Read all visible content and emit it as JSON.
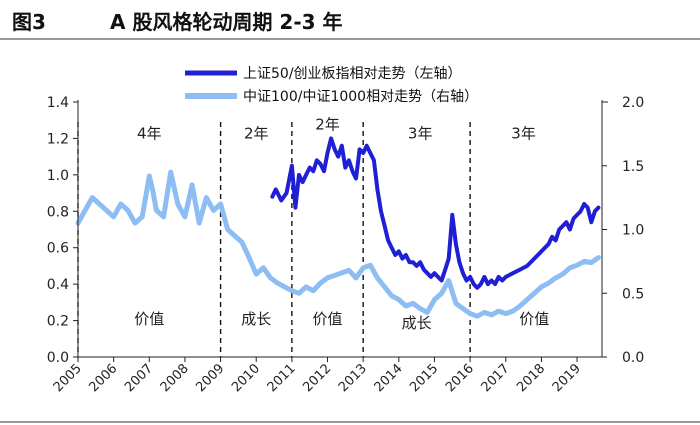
{
  "figure": {
    "number": "图3",
    "title": "A 股风格轮动周期 2-3 年"
  },
  "colors": {
    "series_left": "#1f1fd6",
    "series_right": "#8dbdf2",
    "axis": "#222222"
  },
  "chart_data": {
    "type": "line",
    "title": "A 股风格轮动周期 2-3 年",
    "x_ticks": [
      "2005",
      "2006",
      "2007",
      "2008",
      "2009",
      "2010",
      "2011",
      "2012",
      "2013",
      "2014",
      "2015",
      "2016",
      "2017",
      "2018",
      "2019"
    ],
    "x_range": [
      2005.0,
      2019.7
    ],
    "y_left": {
      "range": [
        0,
        1.4
      ],
      "ticks": [
        "0.0",
        "0.2",
        "0.4",
        "0.6",
        "0.8",
        "1.0",
        "1.2",
        "1.4"
      ]
    },
    "y_right": {
      "range": [
        0,
        2.0
      ],
      "ticks": [
        "0.0",
        "0.5",
        "1.0",
        "1.5",
        "2.0"
      ]
    },
    "legend": [
      "上证50/创业板指相对走势（左轴）",
      "中证100/中证1000相对走势（右轴）"
    ],
    "series": [
      {
        "name": "上证50/创业板指相对走势（左轴）",
        "axis": "left",
        "x": [
          2010.45,
          2010.55,
          2010.7,
          2010.85,
          2011.0,
          2011.1,
          2011.2,
          2011.3,
          2011.4,
          2011.5,
          2011.6,
          2011.7,
          2011.8,
          2011.9,
          2012.0,
          2012.1,
          2012.2,
          2012.3,
          2012.4,
          2012.5,
          2012.6,
          2012.7,
          2012.8,
          2012.9,
          2013.0,
          2013.1,
          2013.2,
          2013.3,
          2013.4,
          2013.5,
          2013.6,
          2013.7,
          2013.8,
          2013.9,
          2014.0,
          2014.1,
          2014.2,
          2014.3,
          2014.4,
          2014.5,
          2014.6,
          2014.7,
          2014.8,
          2014.9,
          2015.0,
          2015.1,
          2015.2,
          2015.3,
          2015.4,
          2015.5,
          2015.6,
          2015.7,
          2015.8,
          2015.9,
          2016.0,
          2016.1,
          2016.2,
          2016.3,
          2016.4,
          2016.5,
          2016.6,
          2016.7,
          2016.8,
          2016.9,
          2017.0,
          2017.2,
          2017.4,
          2017.6,
          2017.8,
          2018.0,
          2018.1,
          2018.2,
          2018.3,
          2018.4,
          2018.5,
          2018.6,
          2018.7,
          2018.8,
          2018.9,
          2019.0,
          2019.1,
          2019.2,
          2019.3,
          2019.4,
          2019.5,
          2019.6
        ],
        "values": [
          0.88,
          0.92,
          0.86,
          0.9,
          1.05,
          0.82,
          1.0,
          0.96,
          1.0,
          1.04,
          1.02,
          1.08,
          1.06,
          1.02,
          1.12,
          1.2,
          1.14,
          1.1,
          1.16,
          1.04,
          1.08,
          1.02,
          0.98,
          1.14,
          1.12,
          1.16,
          1.12,
          1.08,
          0.92,
          0.8,
          0.72,
          0.64,
          0.6,
          0.56,
          0.58,
          0.54,
          0.56,
          0.52,
          0.52,
          0.5,
          0.52,
          0.48,
          0.46,
          0.44,
          0.46,
          0.44,
          0.42,
          0.48,
          0.54,
          0.78,
          0.62,
          0.52,
          0.46,
          0.42,
          0.44,
          0.4,
          0.38,
          0.4,
          0.44,
          0.4,
          0.42,
          0.4,
          0.44,
          0.42,
          0.44,
          0.46,
          0.48,
          0.5,
          0.54,
          0.58,
          0.6,
          0.62,
          0.66,
          0.64,
          0.7,
          0.72,
          0.74,
          0.7,
          0.76,
          0.78,
          0.8,
          0.84,
          0.82,
          0.74,
          0.8,
          0.82
        ]
      },
      {
        "name": "中证100/中证1000相对走势（右轴）",
        "axis": "right",
        "x": [
          2005.0,
          2005.2,
          2005.4,
          2005.6,
          2005.8,
          2006.0,
          2006.2,
          2006.4,
          2006.6,
          2006.8,
          2007.0,
          2007.1,
          2007.2,
          2007.4,
          2007.6,
          2007.8,
          2008.0,
          2008.2,
          2008.4,
          2008.6,
          2008.8,
          2009.0,
          2009.2,
          2009.4,
          2009.6,
          2009.8,
          2010.0,
          2010.2,
          2010.4,
          2010.6,
          2010.8,
          2011.0,
          2011.2,
          2011.4,
          2011.6,
          2011.8,
          2012.0,
          2012.2,
          2012.4,
          2012.6,
          2012.8,
          2013.0,
          2013.2,
          2013.4,
          2013.6,
          2013.8,
          2014.0,
          2014.2,
          2014.4,
          2014.6,
          2014.8,
          2015.0,
          2015.2,
          2015.4,
          2015.6,
          2015.8,
          2016.0,
          2016.2,
          2016.4,
          2016.6,
          2016.8,
          2017.0,
          2017.2,
          2017.4,
          2017.6,
          2017.8,
          2018.0,
          2018.2,
          2018.4,
          2018.6,
          2018.8,
          2019.0,
          2019.2,
          2019.4,
          2019.6
        ],
        "values": [
          1.05,
          1.15,
          1.25,
          1.2,
          1.15,
          1.1,
          1.2,
          1.15,
          1.05,
          1.1,
          1.42,
          1.3,
          1.15,
          1.1,
          1.45,
          1.2,
          1.1,
          1.35,
          1.05,
          1.25,
          1.15,
          1.2,
          1.0,
          0.95,
          0.9,
          0.78,
          0.65,
          0.7,
          0.62,
          0.58,
          0.55,
          0.52,
          0.5,
          0.55,
          0.52,
          0.58,
          0.62,
          0.64,
          0.66,
          0.68,
          0.62,
          0.7,
          0.72,
          0.62,
          0.55,
          0.48,
          0.45,
          0.4,
          0.42,
          0.38,
          0.35,
          0.45,
          0.5,
          0.6,
          0.42,
          0.38,
          0.34,
          0.32,
          0.35,
          0.33,
          0.36,
          0.34,
          0.36,
          0.4,
          0.45,
          0.5,
          0.55,
          0.58,
          0.62,
          0.65,
          0.7,
          0.72,
          0.75,
          0.74,
          0.78
        ]
      }
    ],
    "dividers": [
      2005.0,
      2009.0,
      2011.0,
      2013.0,
      2016.0
    ],
    "annotations": [
      {
        "text": "4年",
        "x": 2007.0,
        "y": 1.2
      },
      {
        "text": "2年",
        "x": 2010.0,
        "y": 1.2
      },
      {
        "text": "2年",
        "x": 2012.0,
        "y": 1.25
      },
      {
        "text": "3年",
        "x": 2014.6,
        "y": 1.2
      },
      {
        "text": "3年",
        "x": 2017.5,
        "y": 1.2
      },
      {
        "text": "价值",
        "x": 2007.0,
        "y": 0.18
      },
      {
        "text": "成长",
        "x": 2010.0,
        "y": 0.18
      },
      {
        "text": "价值",
        "x": 2012.0,
        "y": 0.18
      },
      {
        "text": "成长",
        "x": 2014.5,
        "y": 0.16
      },
      {
        "text": "价值",
        "x": 2017.8,
        "y": 0.18
      }
    ]
  }
}
